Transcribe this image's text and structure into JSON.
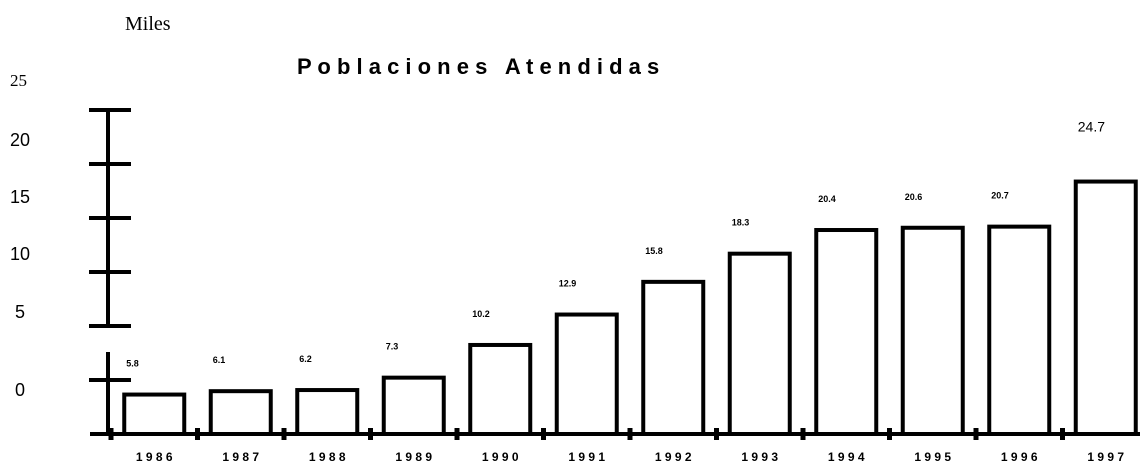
{
  "chart_data": {
    "type": "bar",
    "title": "P o b l a c i o n e s   A t e n d i d a s",
    "unit_label": "Miles",
    "y_ticks": [
      "25",
      "20",
      "15",
      "10",
      "5",
      "0"
    ],
    "categories": [
      "1 9 8 6",
      "1 9 8 7",
      "1 9 8 8",
      "1 9 8 9",
      "1 9 9 0",
      "1 9 9 1",
      "1 9 9 2",
      "1 9 9 3",
      "1 9 9 4",
      "1 9 9 5",
      "1 9 9 6",
      "1 9 9 7"
    ],
    "values": [
      5.8,
      6.1,
      6.2,
      7.3,
      10.2,
      12.9,
      15.8,
      18.3,
      20.4,
      20.6,
      20.7,
      24.7
    ],
    "value_labels": [
      "5.8",
      "6.1",
      "6.2",
      "7.3",
      "10.2",
      "12.9",
      "15.8",
      "18.3",
      "20.4",
      "20.6",
      "20.7",
      "24.7"
    ],
    "legend": "none",
    "grid": false,
    "colors": {
      "bar_fill": "#ffffff",
      "bar_stroke": "#000000",
      "axis": "#000000"
    }
  }
}
